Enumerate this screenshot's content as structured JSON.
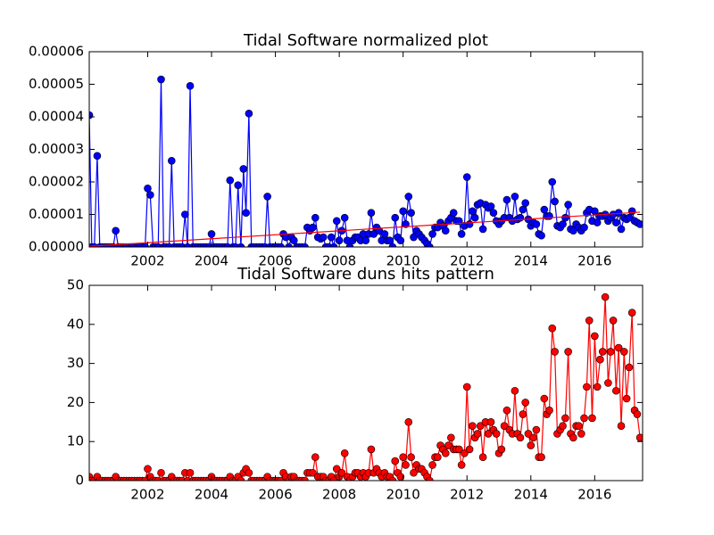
{
  "chart_data": [
    {
      "type": "line",
      "title": "Tidal Software normalized plot",
      "x": [
        2000.17,
        2000.25,
        2000.33,
        2000.42,
        2000.5,
        2000.58,
        2000.67,
        2000.75,
        2000.83,
        2000.92,
        2001,
        2001.08,
        2001.17,
        2001.25,
        2001.33,
        2001.42,
        2001.5,
        2001.58,
        2001.67,
        2001.75,
        2001.83,
        2001.92,
        2002,
        2002.08,
        2002.17,
        2002.25,
        2002.33,
        2002.42,
        2002.5,
        2002.58,
        2002.67,
        2002.75,
        2002.83,
        2002.92,
        2003,
        2003.08,
        2003.17,
        2003.25,
        2003.33,
        2003.42,
        2003.5,
        2003.58,
        2003.67,
        2003.75,
        2003.83,
        2003.92,
        2004,
        2004.08,
        2004.17,
        2004.25,
        2004.33,
        2004.42,
        2004.5,
        2004.58,
        2004.67,
        2004.75,
        2004.83,
        2004.92,
        2005,
        2005.08,
        2005.17,
        2005.25,
        2005.33,
        2005.42,
        2005.5,
        2005.58,
        2005.67,
        2005.75,
        2005.83,
        2005.92,
        2006,
        2006.08,
        2006.17,
        2006.25,
        2006.33,
        2006.42,
        2006.5,
        2006.58,
        2006.67,
        2006.75,
        2006.83,
        2006.92,
        2007,
        2007.08,
        2007.17,
        2007.25,
        2007.33,
        2007.42,
        2007.5,
        2007.58,
        2007.67,
        2007.75,
        2007.83,
        2007.92,
        2008,
        2008.08,
        2008.17,
        2008.25,
        2008.33,
        2008.42,
        2008.5,
        2008.58,
        2008.67,
        2008.75,
        2008.83,
        2008.92,
        2009,
        2009.08,
        2009.17,
        2009.25,
        2009.33,
        2009.42,
        2009.5,
        2009.58,
        2009.67,
        2009.75,
        2009.83,
        2009.92,
        2010,
        2010.08,
        2010.17,
        2010.25,
        2010.33,
        2010.42,
        2010.5,
        2010.58,
        2010.67,
        2010.75,
        2010.83,
        2010.92,
        2011,
        2011.08,
        2011.17,
        2011.25,
        2011.33,
        2011.42,
        2011.5,
        2011.58,
        2011.67,
        2011.75,
        2011.83,
        2011.92,
        2012,
        2012.08,
        2012.17,
        2012.25,
        2012.33,
        2012.42,
        2012.5,
        2012.58,
        2012.67,
        2012.75,
        2012.83,
        2012.92,
        2013,
        2013.08,
        2013.17,
        2013.25,
        2013.33,
        2013.42,
        2013.5,
        2013.58,
        2013.67,
        2013.75,
        2013.83,
        2013.92,
        2014,
        2014.08,
        2014.17,
        2014.25,
        2014.33,
        2014.42,
        2014.5,
        2014.58,
        2014.67,
        2014.75,
        2014.83,
        2014.92,
        2015,
        2015.08,
        2015.17,
        2015.25,
        2015.33,
        2015.42,
        2015.5,
        2015.58,
        2015.67,
        2015.75,
        2015.83,
        2015.92,
        2016,
        2016.08,
        2016.17,
        2016.25,
        2016.33,
        2016.42,
        2016.5,
        2016.58,
        2016.67,
        2016.75,
        2016.83,
        2016.92,
        2017,
        2017.08,
        2017.17,
        2017.25,
        2017.33,
        2017.42
      ],
      "series": [
        {
          "color": "#0000ff",
          "marker": "o",
          "values": [
            4.05e-05,
            0,
            0,
            2.8e-05,
            0,
            0,
            0,
            0,
            0,
            0,
            5e-06,
            0,
            0,
            0,
            0,
            0,
            0,
            0,
            0,
            0,
            0,
            0,
            1.8e-05,
            1.6e-05,
            0,
            0,
            0,
            5.15e-05,
            0,
            0,
            0,
            2.65e-05,
            0,
            0,
            0,
            0,
            1e-05,
            0,
            4.95e-05,
            0,
            0,
            0,
            0,
            0,
            0,
            0,
            4e-06,
            0,
            0,
            0,
            0,
            0,
            0,
            2.05e-05,
            0,
            0,
            1.9e-05,
            0,
            2.4e-05,
            1.05e-05,
            4.1e-05,
            0,
            0,
            0,
            0,
            0,
            0,
            1.55e-05,
            0,
            0,
            0,
            0,
            0,
            4e-06,
            3e-06,
            0,
            3e-06,
            2e-06,
            0,
            0,
            0,
            0,
            6e-06,
            5e-06,
            6e-06,
            9e-06,
            3e-06,
            2.5e-06,
            3e-06,
            0,
            0,
            3e-06,
            0,
            8e-06,
            2e-06,
            5e-06,
            9e-06,
            2e-06,
            0,
            2e-06,
            3e-06,
            3e-06,
            2e-06,
            4e-06,
            2e-06,
            4e-06,
            1.05e-05,
            4e-06,
            6e-06,
            5e-06,
            2e-06,
            4e-06,
            2e-06,
            2e-06,
            0,
            9e-06,
            3e-06,
            2e-06,
            1.1e-05,
            7e-06,
            1.55e-05,
            1.05e-05,
            3e-06,
            5e-06,
            4e-06,
            3e-06,
            2e-06,
            1e-06,
            0,
            4e-06,
            6e-06,
            6e-06,
            7.5e-06,
            6.5e-06,
            5e-06,
            8e-06,
            9e-06,
            1.05e-05,
            8e-06,
            8e-06,
            4e-06,
            6.5e-06,
            2.15e-05,
            7e-06,
            1.1e-05,
            9e-06,
            1.3e-05,
            1.35e-05,
            5.5e-06,
            1.3e-05,
            1.2e-05,
            1.25e-05,
            1.05e-05,
            8e-06,
            7e-06,
            8e-06,
            9e-06,
            1.45e-05,
            9e-06,
            8e-06,
            1.55e-05,
            8.5e-06,
            9e-06,
            1.15e-05,
            1.35e-05,
            8.5e-06,
            6.5e-06,
            7.5e-06,
            7e-06,
            4e-06,
            3.5e-06,
            1.15e-05,
            9.5e-06,
            9.5e-06,
            2e-05,
            1.4e-05,
            6.5e-06,
            6e-06,
            7e-06,
            9e-06,
            1.3e-05,
            5.5e-06,
            5e-06,
            7e-06,
            6e-06,
            5e-06,
            6e-06,
            1.05e-05,
            1.15e-05,
            8e-06,
            1.1e-05,
            7.5e-06,
            9.5e-06,
            9.5e-06,
            1e-05,
            8e-06,
            9e-06,
            1e-05,
            7.5e-06,
            1.05e-05,
            5.5e-06,
            9e-06,
            8.5e-06,
            9e-06,
            1.1e-05,
            8e-06,
            7.5e-06,
            7e-06
          ]
        },
        {
          "color": "#ff0000",
          "x": [
            2000.17,
            2017.42
          ],
          "values": [
            2e-07,
            1.07e-05
          ]
        }
      ],
      "xlim": [
        2000.17,
        2017.5
      ],
      "ylim": [
        0,
        6e-05
      ],
      "xticks": [
        2002,
        2004,
        2006,
        2008,
        2010,
        2012,
        2014,
        2016
      ],
      "yticks": [
        {
          "value": 0,
          "label": "0.00000"
        },
        {
          "value": 1e-05,
          "label": "0.00001"
        },
        {
          "value": 2e-05,
          "label": "0.00002"
        },
        {
          "value": 3e-05,
          "label": "0.00003"
        },
        {
          "value": 4e-05,
          "label": "0.00004"
        },
        {
          "value": 5e-05,
          "label": "0.00005"
        },
        {
          "value": 6e-05,
          "label": "0.00006"
        }
      ]
    },
    {
      "type": "line",
      "title": "Tidal Software duns hits pattern",
      "x": [
        2000.17,
        2000.25,
        2000.33,
        2000.42,
        2000.5,
        2000.58,
        2000.67,
        2000.75,
        2000.83,
        2000.92,
        2001,
        2001.08,
        2001.17,
        2001.25,
        2001.33,
        2001.42,
        2001.5,
        2001.58,
        2001.67,
        2001.75,
        2001.83,
        2001.92,
        2002,
        2002.08,
        2002.17,
        2002.25,
        2002.33,
        2002.42,
        2002.5,
        2002.58,
        2002.67,
        2002.75,
        2002.83,
        2002.92,
        2003,
        2003.08,
        2003.17,
        2003.25,
        2003.33,
        2003.42,
        2003.5,
        2003.58,
        2003.67,
        2003.75,
        2003.83,
        2003.92,
        2004,
        2004.08,
        2004.17,
        2004.25,
        2004.33,
        2004.42,
        2004.5,
        2004.58,
        2004.67,
        2004.75,
        2004.83,
        2004.92,
        2005,
        2005.08,
        2005.17,
        2005.25,
        2005.33,
        2005.42,
        2005.5,
        2005.58,
        2005.67,
        2005.75,
        2005.83,
        2005.92,
        2006,
        2006.08,
        2006.17,
        2006.25,
        2006.33,
        2006.42,
        2006.5,
        2006.58,
        2006.67,
        2006.75,
        2006.83,
        2006.92,
        2007,
        2007.08,
        2007.17,
        2007.25,
        2007.33,
        2007.42,
        2007.5,
        2007.58,
        2007.67,
        2007.75,
        2007.83,
        2007.92,
        2008,
        2008.08,
        2008.17,
        2008.25,
        2008.33,
        2008.42,
        2008.5,
        2008.58,
        2008.67,
        2008.75,
        2008.83,
        2008.92,
        2009,
        2009.08,
        2009.17,
        2009.25,
        2009.33,
        2009.42,
        2009.5,
        2009.58,
        2009.67,
        2009.75,
        2009.83,
        2009.92,
        2010,
        2010.08,
        2010.17,
        2010.25,
        2010.33,
        2010.42,
        2010.5,
        2010.58,
        2010.67,
        2010.75,
        2010.83,
        2010.92,
        2011,
        2011.08,
        2011.17,
        2011.25,
        2011.33,
        2011.42,
        2011.5,
        2011.58,
        2011.67,
        2011.75,
        2011.83,
        2011.92,
        2012,
        2012.08,
        2012.17,
        2012.25,
        2012.33,
        2012.42,
        2012.5,
        2012.58,
        2012.67,
        2012.75,
        2012.83,
        2012.92,
        2013,
        2013.08,
        2013.17,
        2013.25,
        2013.33,
        2013.42,
        2013.5,
        2013.58,
        2013.67,
        2013.75,
        2013.83,
        2013.92,
        2014,
        2014.08,
        2014.17,
        2014.25,
        2014.33,
        2014.42,
        2014.5,
        2014.58,
        2014.67,
        2014.75,
        2014.83,
        2014.92,
        2015,
        2015.08,
        2015.17,
        2015.25,
        2015.33,
        2015.42,
        2015.5,
        2015.58,
        2015.67,
        2015.75,
        2015.83,
        2015.92,
        2016,
        2016.08,
        2016.17,
        2016.25,
        2016.33,
        2016.42,
        2016.5,
        2016.58,
        2016.67,
        2016.75,
        2016.83,
        2016.92,
        2017,
        2017.08,
        2017.17,
        2017.25,
        2017.33,
        2017.42
      ],
      "series": [
        {
          "color": "#ff0000",
          "marker": "o",
          "values": [
            1,
            0,
            0,
            1,
            0,
            0,
            0,
            0,
            0,
            0,
            1,
            0,
            0,
            0,
            0,
            0,
            0,
            0,
            0,
            0,
            0,
            0,
            3,
            1,
            0,
            0,
            0,
            2,
            0,
            0,
            0,
            1,
            0,
            0,
            0,
            0,
            2,
            0,
            2,
            0,
            0,
            0,
            0,
            0,
            0,
            0,
            1,
            0,
            0,
            0,
            0,
            0,
            0,
            1,
            0,
            0,
            1,
            0,
            2,
            3,
            2,
            0,
            0,
            0,
            0,
            0,
            0,
            1,
            0,
            0,
            0,
            0,
            0,
            2,
            1,
            0,
            1,
            1,
            0,
            0,
            0,
            0,
            2,
            2,
            2,
            6,
            1,
            1,
            1,
            0,
            0,
            1,
            0,
            3,
            1,
            2,
            7,
            1,
            0,
            1,
            2,
            2,
            1,
            2,
            1,
            2,
            8,
            2,
            3,
            2,
            1,
            2,
            1,
            1,
            0,
            5,
            2,
            1,
            6,
            4,
            15,
            6,
            2,
            4,
            3,
            3,
            2,
            1,
            0,
            4,
            6,
            6,
            9,
            8,
            7,
            9,
            11,
            8,
            8,
            8,
            4,
            7,
            24,
            8,
            14,
            11,
            12,
            14,
            6,
            15,
            12,
            15,
            13,
            12,
            7,
            8,
            14,
            18,
            13,
            12,
            23,
            12,
            11,
            17,
            20,
            12,
            9,
            11,
            13,
            6,
            6,
            21,
            17,
            18,
            39,
            33,
            12,
            13,
            14,
            16,
            33,
            12,
            11,
            14,
            14,
            12,
            16,
            24,
            41,
            16,
            37,
            24,
            31,
            33,
            47,
            25,
            33,
            41,
            23,
            34,
            14,
            33,
            21,
            29,
            43,
            18,
            17,
            11
          ]
        }
      ],
      "xlim": [
        2000.17,
        2017.5
      ],
      "ylim": [
        0,
        50
      ],
      "xticks": [
        2002,
        2004,
        2006,
        2008,
        2010,
        2012,
        2014,
        2016
      ],
      "yticks": [
        0,
        10,
        20,
        30,
        40,
        50
      ]
    }
  ]
}
